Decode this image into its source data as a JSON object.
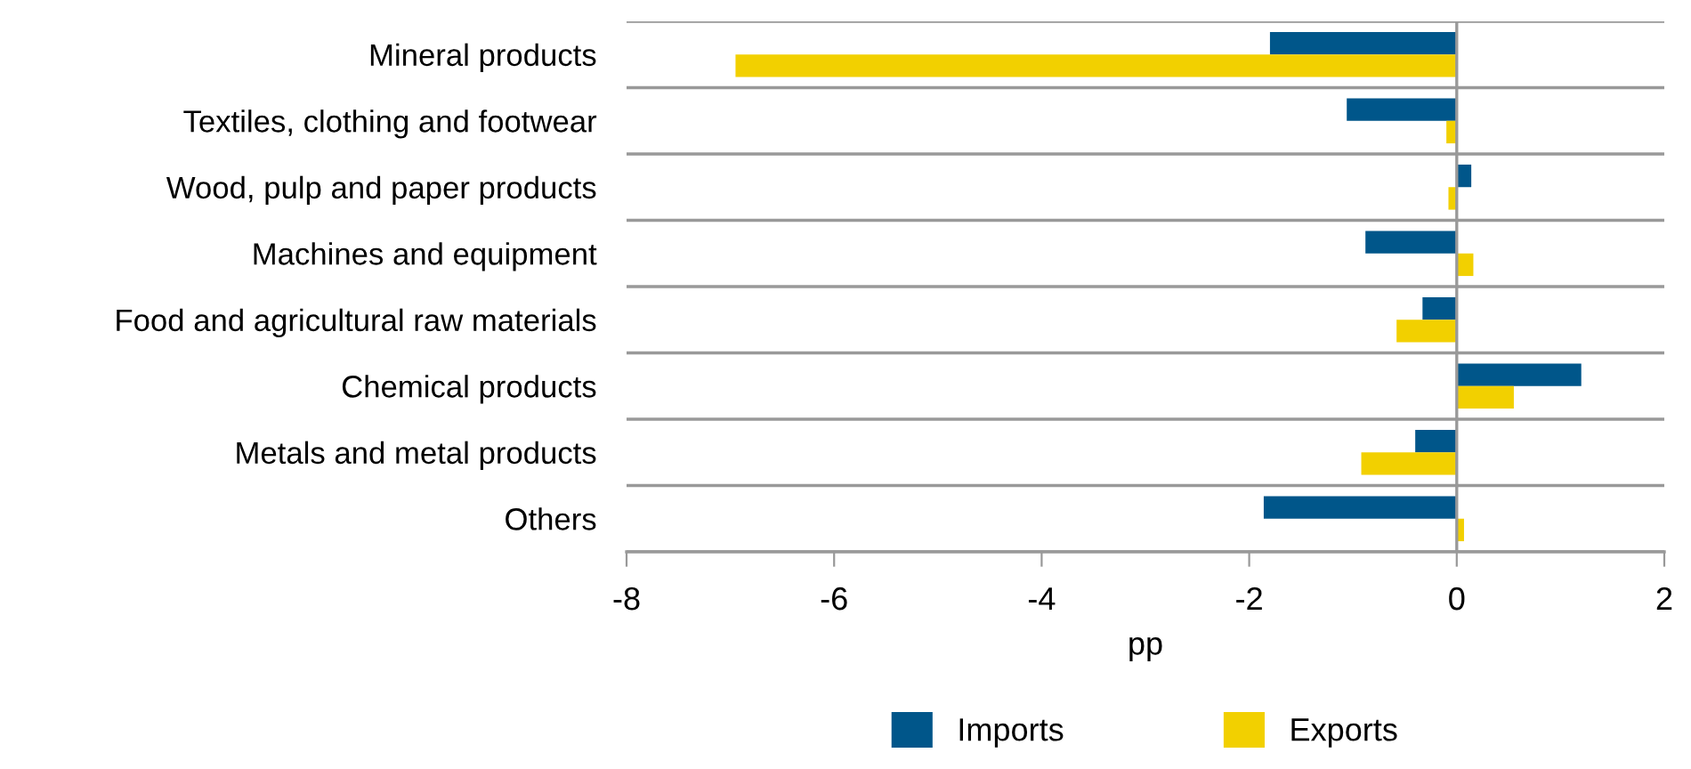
{
  "chart_data": {
    "type": "bar",
    "orientation": "horizontal",
    "xlabel": "pp",
    "categories": [
      "Mineral products",
      "Textiles, clothing and footwear",
      "Wood, pulp and paper products",
      "Machines and equipment",
      "Food and agricultural raw materials",
      "Chemical products",
      "Metals and metal products",
      "Others"
    ],
    "series": [
      {
        "name": "Imports",
        "color": "#00568a",
        "values": [
          -1.8,
          -1.06,
          0.14,
          -0.88,
          -0.33,
          1.2,
          -0.4,
          -1.86
        ]
      },
      {
        "name": "Exports",
        "color": "#f2d000",
        "values": [
          -6.95,
          -0.1,
          -0.08,
          0.16,
          -0.58,
          0.55,
          -0.92,
          0.07
        ]
      }
    ],
    "xlim": [
      -8,
      2
    ],
    "xticks": [
      -8,
      -6,
      -4,
      -2,
      0,
      2
    ],
    "grid": "y",
    "legend": "bottom",
    "ref_lines": [
      {
        "axis": "x",
        "value": 0,
        "color": "#999999"
      }
    ]
  }
}
